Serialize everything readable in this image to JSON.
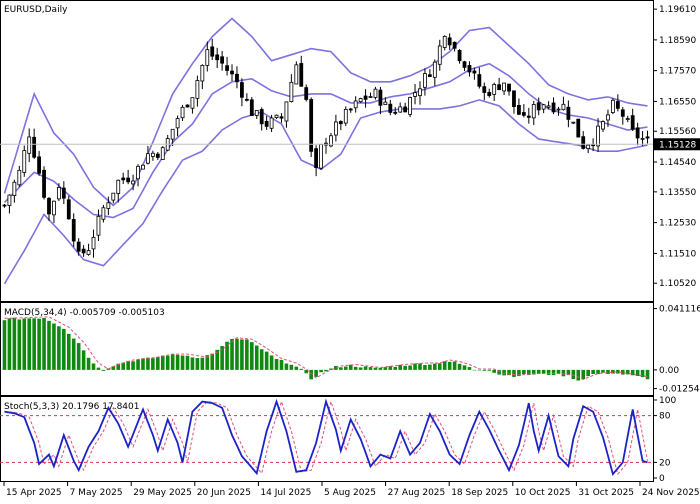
{
  "chart_data": [
    {
      "type": "candlestick",
      "title": "EURUSD,Daily",
      "ylim": [
        1.1003,
        1.1978
      ],
      "yticks": [
        "1.19610",
        "1.18590",
        "1.17570",
        "1.16550",
        "1.15560",
        "1.14540",
        "1.13550",
        "1.12530",
        "1.11510",
        "1.10520"
      ],
      "last_price": "1.15128",
      "bollinger": {
        "upper": [
          [
            0,
            1.135
          ],
          [
            6,
            1.168
          ],
          [
            10,
            1.155
          ],
          [
            14,
            1.148
          ],
          [
            18,
            1.137
          ],
          [
            22,
            1.131
          ],
          [
            26,
            1.137
          ],
          [
            30,
            1.152
          ],
          [
            34,
            1.168
          ],
          [
            38,
            1.178
          ],
          [
            42,
            1.187
          ],
          [
            46,
            1.193
          ],
          [
            50,
            1.187
          ],
          [
            54,
            1.179
          ],
          [
            58,
            1.181
          ],
          [
            62,
            1.183
          ],
          [
            66,
            1.182
          ],
          [
            70,
            1.175
          ],
          [
            74,
            1.172
          ],
          [
            78,
            1.172
          ],
          [
            82,
            1.174
          ],
          [
            86,
            1.177
          ],
          [
            90,
            1.182
          ],
          [
            94,
            1.189
          ],
          [
            98,
            1.19
          ],
          [
            102,
            1.184
          ],
          [
            106,
            1.178
          ],
          [
            110,
            1.171
          ],
          [
            114,
            1.168
          ],
          [
            118,
            1.166
          ],
          [
            122,
            1.167
          ],
          [
            126,
            1.165
          ],
          [
            130,
            1.164
          ]
        ],
        "middle": [
          [
            0,
            1.132
          ],
          [
            6,
            1.142
          ],
          [
            10,
            1.139
          ],
          [
            14,
            1.133
          ],
          [
            18,
            1.128
          ],
          [
            22,
            1.127
          ],
          [
            26,
            1.13
          ],
          [
            30,
            1.142
          ],
          [
            34,
            1.152
          ],
          [
            38,
            1.158
          ],
          [
            42,
            1.168
          ],
          [
            46,
            1.172
          ],
          [
            50,
            1.173
          ],
          [
            54,
            1.169
          ],
          [
            58,
            1.167
          ],
          [
            62,
            1.168
          ],
          [
            66,
            1.168
          ],
          [
            70,
            1.165
          ],
          [
            74,
            1.165
          ],
          [
            78,
            1.167
          ],
          [
            82,
            1.168
          ],
          [
            86,
            1.17
          ],
          [
            90,
            1.172
          ],
          [
            94,
            1.176
          ],
          [
            98,
            1.178
          ],
          [
            102,
            1.174
          ],
          [
            106,
            1.168
          ],
          [
            110,
            1.163
          ],
          [
            114,
            1.161
          ],
          [
            118,
            1.16
          ],
          [
            122,
            1.158
          ],
          [
            126,
            1.156
          ],
          [
            130,
            1.157
          ]
        ],
        "lower": [
          [
            0,
            1.105
          ],
          [
            4,
            1.116
          ],
          [
            8,
            1.128
          ],
          [
            12,
            1.121
          ],
          [
            16,
            1.113
          ],
          [
            20,
            1.111
          ],
          [
            24,
            1.118
          ],
          [
            28,
            1.125
          ],
          [
            32,
            1.136
          ],
          [
            36,
            1.146
          ],
          [
            40,
            1.149
          ],
          [
            44,
            1.156
          ],
          [
            48,
            1.16
          ],
          [
            52,
            1.162
          ],
          [
            56,
            1.158
          ],
          [
            60,
            1.146
          ],
          [
            64,
            1.143
          ],
          [
            68,
            1.148
          ],
          [
            72,
            1.16
          ],
          [
            76,
            1.162
          ],
          [
            80,
            1.163
          ],
          [
            84,
            1.163
          ],
          [
            88,
            1.163
          ],
          [
            92,
            1.164
          ],
          [
            96,
            1.166
          ],
          [
            100,
            1.164
          ],
          [
            104,
            1.158
          ],
          [
            108,
            1.153
          ],
          [
            112,
            1.152
          ],
          [
            116,
            1.151
          ],
          [
            120,
            1.149
          ],
          [
            124,
            1.149
          ],
          [
            130,
            1.151
          ]
        ]
      },
      "price_path": [
        [
          0,
          1.131
        ],
        [
          3,
          1.142
        ],
        [
          5,
          1.155
        ],
        [
          7,
          1.142
        ],
        [
          9,
          1.128
        ],
        [
          11,
          1.138
        ],
        [
          13,
          1.128
        ],
        [
          15,
          1.114
        ],
        [
          17,
          1.117
        ],
        [
          20,
          1.13
        ],
        [
          23,
          1.139
        ],
        [
          26,
          1.141
        ],
        [
          29,
          1.148
        ],
        [
          32,
          1.149
        ],
        [
          35,
          1.16
        ],
        [
          38,
          1.168
        ],
        [
          41,
          1.182
        ],
        [
          44,
          1.178
        ],
        [
          47,
          1.172
        ],
        [
          50,
          1.162
        ],
        [
          53,
          1.158
        ],
        [
          56,
          1.16
        ],
        [
          59,
          1.178
        ],
        [
          61,
          1.166
        ],
        [
          62,
          1.148
        ],
        [
          63,
          1.142
        ],
        [
          64,
          1.15
        ],
        [
          66,
          1.155
        ],
        [
          69,
          1.161
        ],
        [
          72,
          1.166
        ],
        [
          75,
          1.168
        ],
        [
          78,
          1.162
        ],
        [
          81,
          1.164
        ],
        [
          84,
          1.171
        ],
        [
          87,
          1.178
        ],
        [
          89,
          1.189
        ],
        [
          91,
          1.183
        ],
        [
          94,
          1.176
        ],
        [
          97,
          1.168
        ],
        [
          99,
          1.17
        ],
        [
          101,
          1.172
        ],
        [
          103,
          1.164
        ],
        [
          105,
          1.159
        ],
        [
          107,
          1.163
        ],
        [
          109,
          1.165
        ],
        [
          111,
          1.164
        ],
        [
          113,
          1.164
        ],
        [
          115,
          1.158
        ],
        [
          117,
          1.151
        ],
        [
          119,
          1.153
        ],
        [
          121,
          1.158
        ],
        [
          123,
          1.164
        ],
        [
          125,
          1.161
        ],
        [
          127,
          1.155
        ],
        [
          130,
          1.152
        ]
      ],
      "x_count": 131
    },
    {
      "type": "histogram",
      "title": "MACD(5,34,4) -0.005709 -0.005103",
      "ylim": [
        -0.0155,
        0.0435
      ],
      "yticks": [
        "0.041116",
        "0.00",
        "-0.012549"
      ],
      "bar_path": [
        [
          0,
          0.034
        ],
        [
          8,
          0.035
        ],
        [
          12,
          0.028
        ],
        [
          15,
          0.018
        ],
        [
          18,
          0.004
        ],
        [
          20,
          0.0
        ],
        [
          22,
          0.003
        ],
        [
          25,
          0.006
        ],
        [
          30,
          0.008
        ],
        [
          33,
          0.01
        ],
        [
          36,
          0.01
        ],
        [
          40,
          0.008
        ],
        [
          43,
          0.013
        ],
        [
          46,
          0.021
        ],
        [
          49,
          0.02
        ],
        [
          52,
          0.014
        ],
        [
          55,
          0.007
        ],
        [
          58,
          0.004
        ],
        [
          60,
          0.0
        ],
        [
          62,
          -0.006
        ],
        [
          64,
          -0.002
        ],
        [
          67,
          0.002
        ],
        [
          70,
          0.003
        ],
        [
          75,
          0.001
        ],
        [
          80,
          0.003
        ],
        [
          84,
          0.004
        ],
        [
          87,
          0.004
        ],
        [
          89,
          0.006
        ],
        [
          91,
          0.005
        ],
        [
          93,
          0.003
        ],
        [
          95,
          0.0
        ],
        [
          98,
          0.0
        ],
        [
          100,
          -0.003
        ],
        [
          103,
          -0.004
        ],
        [
          107,
          -0.003
        ],
        [
          111,
          -0.003
        ],
        [
          114,
          -0.004
        ],
        [
          116,
          -0.007
        ],
        [
          119,
          -0.003
        ],
        [
          123,
          -0.002
        ],
        [
          127,
          -0.004
        ],
        [
          130,
          -0.0057
        ]
      ],
      "signal_offset": 0.0006
    },
    {
      "type": "line",
      "title": "Stoch(5,3,3) 20.1796 17.8401",
      "ylim": [
        0,
        100
      ],
      "yticks": [
        "100",
        "80",
        "20",
        "0"
      ],
      "levels": [
        80,
        20
      ],
      "k_path": [
        [
          0,
          85
        ],
        [
          2,
          83
        ],
        [
          4,
          78
        ],
        [
          6,
          45
        ],
        [
          7,
          18
        ],
        [
          9,
          30
        ],
        [
          10,
          15
        ],
        [
          12,
          55
        ],
        [
          14,
          22
        ],
        [
          15,
          10
        ],
        [
          17,
          40
        ],
        [
          19,
          60
        ],
        [
          21,
          90
        ],
        [
          23,
          70
        ],
        [
          25,
          40
        ],
        [
          28,
          88
        ],
        [
          30,
          55
        ],
        [
          31,
          35
        ],
        [
          33,
          75
        ],
        [
          35,
          45
        ],
        [
          36,
          20
        ],
        [
          38,
          85
        ],
        [
          40,
          98
        ],
        [
          42,
          96
        ],
        [
          44,
          90
        ],
        [
          46,
          55
        ],
        [
          48,
          28
        ],
        [
          51,
          6
        ],
        [
          53,
          60
        ],
        [
          55,
          98
        ],
        [
          57,
          60
        ],
        [
          59,
          8
        ],
        [
          61,
          10
        ],
        [
          63,
          45
        ],
        [
          65,
          98
        ],
        [
          67,
          62
        ],
        [
          68,
          35
        ],
        [
          70,
          75
        ],
        [
          72,
          50
        ],
        [
          74,
          15
        ],
        [
          76,
          30
        ],
        [
          78,
          25
        ],
        [
          80,
          60
        ],
        [
          82,
          30
        ],
        [
          84,
          45
        ],
        [
          86,
          82
        ],
        [
          88,
          60
        ],
        [
          90,
          30
        ],
        [
          92,
          18
        ],
        [
          94,
          55
        ],
        [
          96,
          85
        ],
        [
          98,
          62
        ],
        [
          100,
          35
        ],
        [
          102,
          10
        ],
        [
          104,
          42
        ],
        [
          106,
          96
        ],
        [
          107,
          60
        ],
        [
          108,
          35
        ],
        [
          110,
          80
        ],
        [
          112,
          28
        ],
        [
          114,
          15
        ],
        [
          115,
          50
        ],
        [
          117,
          92
        ],
        [
          119,
          85
        ],
        [
          121,
          52
        ],
        [
          123,
          5
        ],
        [
          125,
          20
        ],
        [
          127,
          88
        ],
        [
          129,
          22
        ],
        [
          131,
          18
        ]
      ],
      "d_lag": 1
    }
  ],
  "x_axis_labels": [
    "15 Apr 2025",
    "7 May 2025",
    "29 May 2025",
    "20 Jun 2025",
    "14 Jul 2025",
    "5 Aug 2025",
    "27 Aug 2025",
    "18 Sep 2025",
    "10 Oct 2025",
    "31 Oct 2025",
    "24 Nov 2025"
  ],
  "colors": {
    "background": "#ffffff",
    "band": "#7b73e0",
    "candle_line": "#000000",
    "candle_fill_up": "#ffffff",
    "candle_fill_down": "#000000",
    "current_price_line": "#c0c0c0",
    "macd_bar": "#0f8a0f",
    "macd_signal": "#e0507a",
    "stoch_k": "#1c22c8",
    "stoch_d": "#e0507a",
    "stoch_level": "#e03040",
    "last_price_tag_bg": "#000000",
    "last_price_tag_text": "#ffffff"
  }
}
